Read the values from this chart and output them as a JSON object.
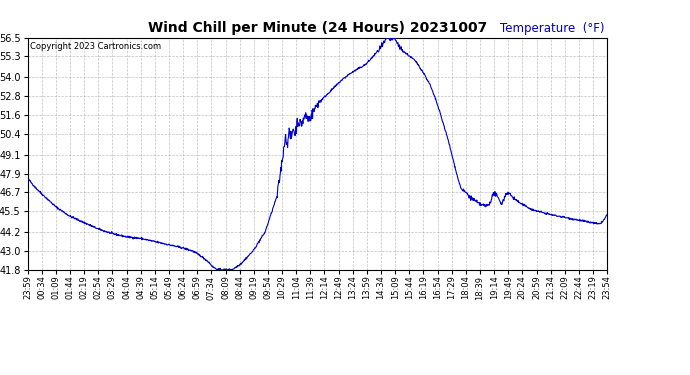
{
  "title": "Wind Chill per Minute (24 Hours) 20231007",
  "ylabel": "Temperature  (°F)",
  "copyright_text": "Copyright 2023 Cartronics.com",
  "line_color": "#0000cc",
  "ylabel_color": "#0000bb",
  "background_color": "#ffffff",
  "grid_color": "#999999",
  "ylim": [
    41.8,
    56.5
  ],
  "yticks": [
    41.8,
    43.0,
    44.2,
    45.5,
    46.7,
    47.9,
    49.1,
    50.4,
    51.6,
    52.8,
    54.0,
    55.3,
    56.5
  ],
  "x_tick_labels": [
    "23:59",
    "00:34",
    "01:09",
    "01:44",
    "02:19",
    "02:54",
    "03:29",
    "04:04",
    "04:39",
    "05:14",
    "05:49",
    "06:24",
    "06:59",
    "07:34",
    "08:09",
    "08:44",
    "09:19",
    "09:54",
    "10:29",
    "11:04",
    "11:39",
    "12:14",
    "12:49",
    "13:24",
    "13:59",
    "14:34",
    "15:09",
    "15:44",
    "16:19",
    "16:54",
    "17:29",
    "18:04",
    "18:39",
    "19:14",
    "19:49",
    "20:24",
    "20:59",
    "21:34",
    "22:09",
    "22:44",
    "23:19",
    "23:54"
  ],
  "waypoints_min": [
    [
      0,
      47.6
    ],
    [
      20,
      47.0
    ],
    [
      40,
      46.5
    ],
    [
      70,
      45.8
    ],
    [
      105,
      45.2
    ],
    [
      140,
      44.8
    ],
    [
      175,
      44.4
    ],
    [
      210,
      44.1
    ],
    [
      245,
      43.9
    ],
    [
      280,
      43.8
    ],
    [
      315,
      43.6
    ],
    [
      350,
      43.4
    ],
    [
      385,
      43.2
    ],
    [
      410,
      43.0
    ],
    [
      430,
      42.7
    ],
    [
      450,
      42.3
    ],
    [
      460,
      42.0
    ],
    [
      470,
      41.85
    ],
    [
      480,
      41.82
    ],
    [
      490,
      41.82
    ],
    [
      500,
      41.82
    ],
    [
      510,
      41.85
    ],
    [
      530,
      42.2
    ],
    [
      560,
      43.0
    ],
    [
      590,
      44.2
    ],
    [
      620,
      46.5
    ],
    [
      635,
      49.2
    ],
    [
      640,
      50.2
    ],
    [
      645,
      49.8
    ],
    [
      650,
      50.5
    ],
    [
      655,
      50.1
    ],
    [
      660,
      50.8
    ],
    [
      665,
      50.3
    ],
    [
      670,
      51.2
    ],
    [
      680,
      51.0
    ],
    [
      690,
      51.6
    ],
    [
      700,
      51.3
    ],
    [
      710,
      51.8
    ],
    [
      720,
      52.3
    ],
    [
      740,
      52.8
    ],
    [
      760,
      53.3
    ],
    [
      780,
      53.8
    ],
    [
      800,
      54.2
    ],
    [
      820,
      54.5
    ],
    [
      840,
      54.8
    ],
    [
      855,
      55.2
    ],
    [
      865,
      55.5
    ],
    [
      875,
      55.8
    ],
    [
      882,
      56.0
    ],
    [
      887,
      56.2
    ],
    [
      892,
      56.4
    ],
    [
      897,
      56.5
    ],
    [
      902,
      56.3
    ],
    [
      907,
      56.5
    ],
    [
      912,
      56.4
    ],
    [
      917,
      56.2
    ],
    [
      922,
      56.0
    ],
    [
      930,
      55.7
    ],
    [
      940,
      55.5
    ],
    [
      950,
      55.3
    ],
    [
      960,
      55.1
    ],
    [
      970,
      54.8
    ],
    [
      985,
      54.2
    ],
    [
      1000,
      53.5
    ],
    [
      1015,
      52.5
    ],
    [
      1030,
      51.3
    ],
    [
      1045,
      50.0
    ],
    [
      1060,
      48.5
    ],
    [
      1070,
      47.5
    ],
    [
      1078,
      46.9
    ],
    [
      1085,
      46.75
    ],
    [
      1090,
      46.7
    ],
    [
      1095,
      46.5
    ],
    [
      1100,
      46.4
    ],
    [
      1110,
      46.2
    ],
    [
      1120,
      46.0
    ],
    [
      1130,
      45.9
    ],
    [
      1140,
      45.85
    ],
    [
      1148,
      46.0
    ],
    [
      1155,
      46.5
    ],
    [
      1160,
      46.65
    ],
    [
      1165,
      46.5
    ],
    [
      1170,
      46.3
    ],
    [
      1175,
      46.1
    ],
    [
      1178,
      46.0
    ],
    [
      1182,
      46.2
    ],
    [
      1188,
      46.6
    ],
    [
      1193,
      46.7
    ],
    [
      1198,
      46.6
    ],
    [
      1205,
      46.4
    ],
    [
      1215,
      46.2
    ],
    [
      1225,
      46.0
    ],
    [
      1240,
      45.8
    ],
    [
      1255,
      45.6
    ],
    [
      1270,
      45.5
    ],
    [
      1285,
      45.4
    ],
    [
      1300,
      45.3
    ],
    [
      1320,
      45.2
    ],
    [
      1340,
      45.1
    ],
    [
      1360,
      45.0
    ],
    [
      1380,
      44.9
    ],
    [
      1400,
      44.8
    ],
    [
      1420,
      44.7
    ],
    [
      1430,
      44.9
    ],
    [
      1440,
      45.3
    ]
  ]
}
